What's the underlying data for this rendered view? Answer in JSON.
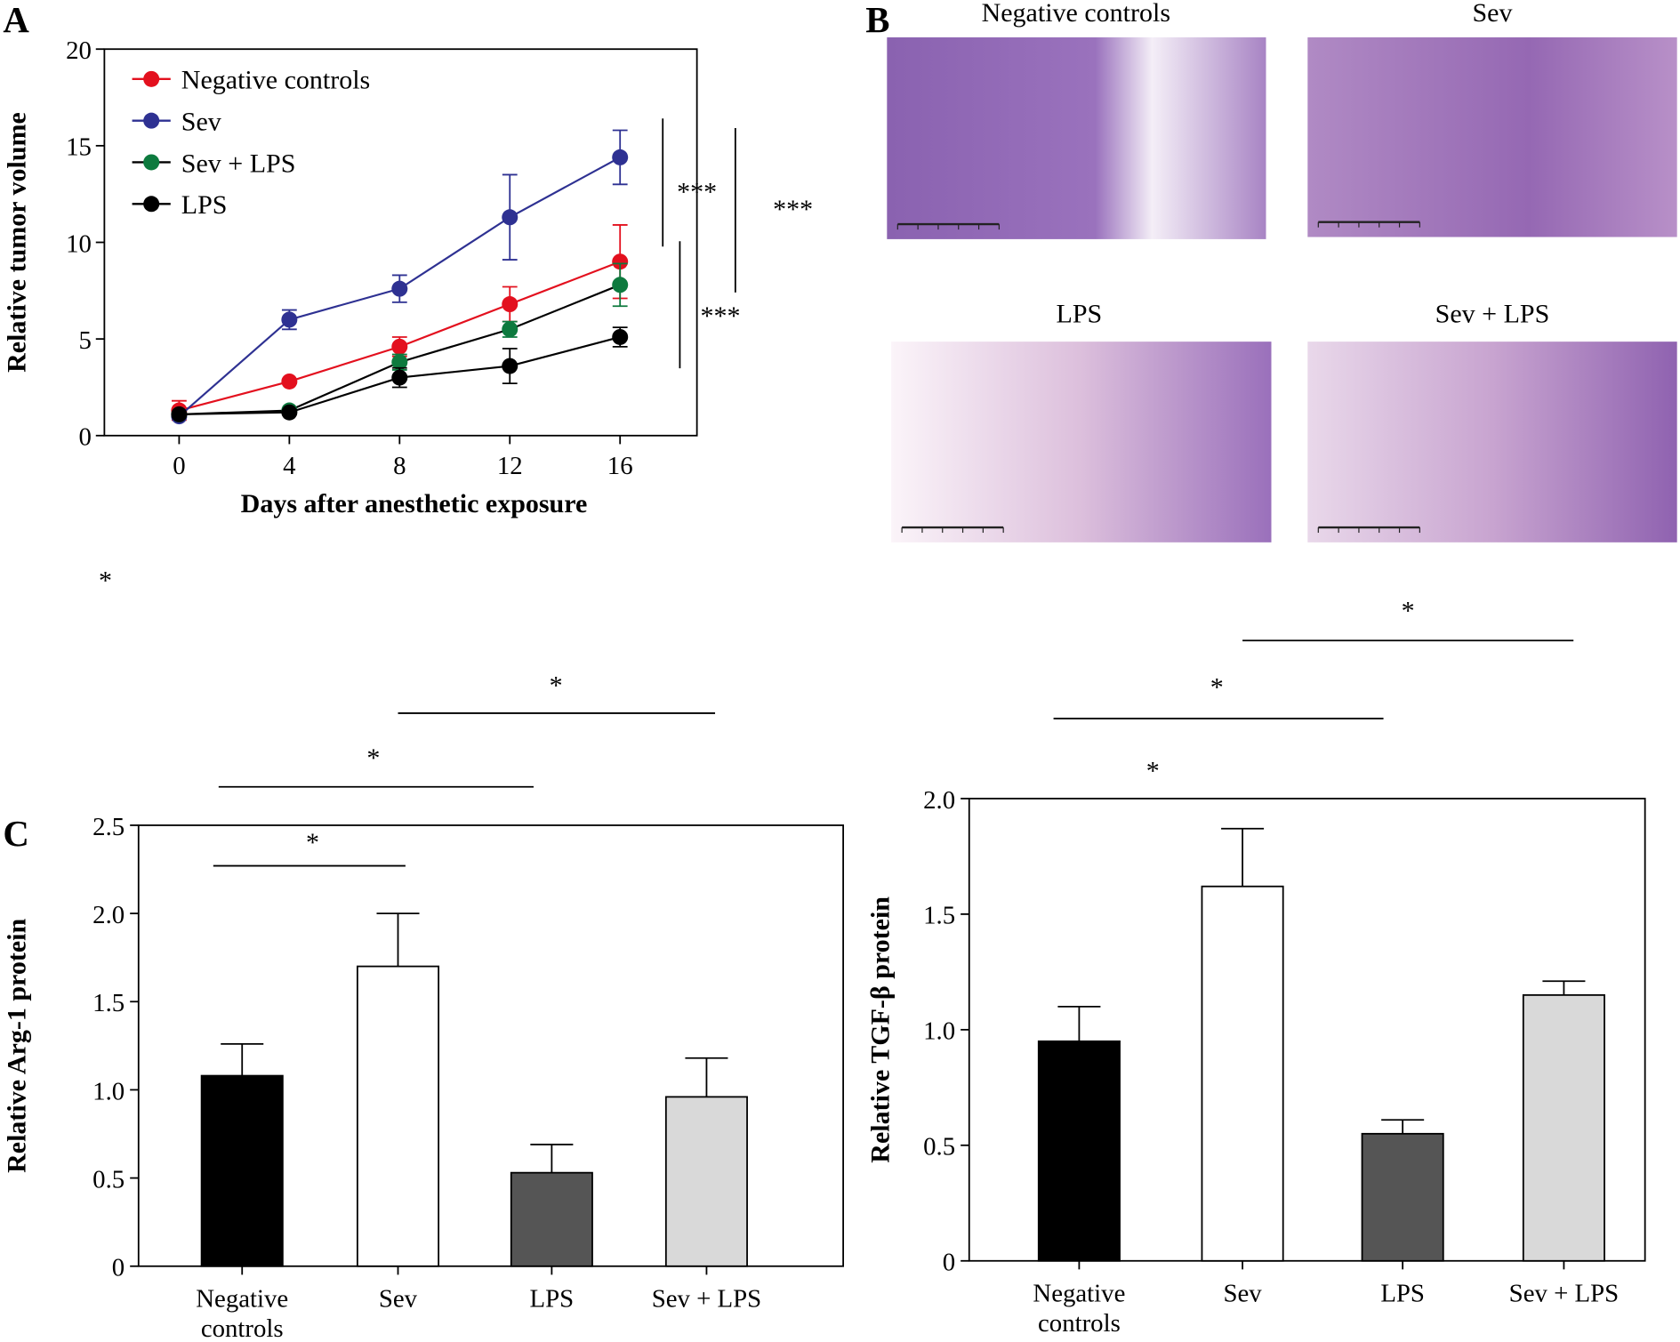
{
  "panels": {
    "a": "A",
    "b": "B",
    "c": "C"
  },
  "chart_data": [
    {
      "type": "line",
      "xlabel": "Days after anesthetic exposure",
      "ylabel": "Relative tumor volume",
      "x": [
        0,
        4,
        8,
        12,
        16
      ],
      "xticks": [
        "0",
        "4",
        "8",
        "12",
        "16"
      ],
      "yticks": [
        "0",
        "5",
        "10",
        "15",
        "20"
      ],
      "xlim": [
        -4,
        19.5
      ],
      "ylim": [
        0,
        20
      ],
      "legend_position": "top-left",
      "series": [
        {
          "name": "Negative controls",
          "color": "#e3101e",
          "values": [
            1.3,
            2.8,
            4.6,
            6.8,
            9.0
          ],
          "errors": [
            0.5,
            0.1,
            0.5,
            0.9,
            1.9
          ]
        },
        {
          "name": "Sev",
          "color": "#2e3192",
          "values": [
            1.0,
            6.0,
            7.6,
            11.3,
            14.4
          ],
          "errors": [
            0.1,
            0.5,
            0.7,
            2.2,
            1.4
          ]
        },
        {
          "name": "Sev + LPS",
          "color": "#0d7a3e",
          "line_color": "#000000",
          "values": [
            1.1,
            1.3,
            3.8,
            5.5,
            7.8
          ],
          "errors": [
            0.1,
            0.1,
            0.4,
            0.4,
            1.1
          ]
        },
        {
          "name": "LPS",
          "color": "#000000",
          "values": [
            1.1,
            1.2,
            3.0,
            3.6,
            5.1
          ],
          "errors": [
            0.1,
            0.1,
            0.5,
            0.9,
            0.5
          ]
        }
      ],
      "significance": [
        "***",
        "***",
        "***"
      ]
    },
    {
      "type": "bar",
      "ylabel": "Relative Arg-1 protein",
      "categories": [
        "Negative controls",
        "Sev",
        "LPS",
        "Sev + LPS"
      ],
      "values": [
        1.08,
        1.7,
        0.53,
        0.96
      ],
      "errors": [
        0.18,
        0.3,
        0.16,
        0.22
      ],
      "colors": [
        "#000000",
        "#ffffff",
        "#555555",
        "#d9d9d9"
      ],
      "yticks": [
        "0",
        "0.5",
        "1.0",
        "1.5",
        "2.0",
        "2.5"
      ],
      "ylim": [
        0,
        2.5
      ],
      "significance": [
        "*",
        "*",
        "*",
        "*"
      ]
    },
    {
      "type": "bar",
      "ylabel": "Relative TGF-β protein",
      "categories": [
        "Negative controls",
        "Sev",
        "LPS",
        "Sev + LPS"
      ],
      "values": [
        0.95,
        1.62,
        0.55,
        1.15
      ],
      "errors": [
        0.15,
        0.25,
        0.06,
        0.06
      ],
      "colors": [
        "#000000",
        "#ffffff",
        "#555555",
        "#d9d9d9"
      ],
      "yticks": [
        "0",
        "0.5",
        "1.0",
        "1.5",
        "2.0"
      ],
      "ylim": [
        0,
        2.0
      ],
      "significance": [
        "*",
        "*",
        "*"
      ]
    }
  ],
  "histology": {
    "images": [
      {
        "label": "Negative controls"
      },
      {
        "label": "Sev"
      },
      {
        "label": "LPS"
      },
      {
        "label": "Sev + LPS"
      }
    ]
  }
}
